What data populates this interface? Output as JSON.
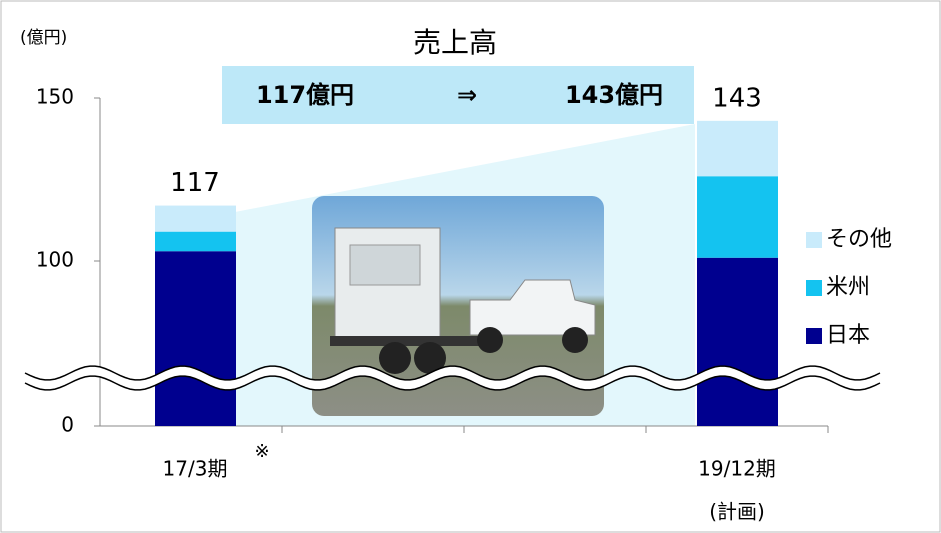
{
  "chart_data": {
    "type": "stacked-bar",
    "title": "売上高",
    "y_axis_label": "(億円)",
    "annotation": {
      "from": "117億円",
      "arrow": "⇒",
      "to": "143億円"
    },
    "categories": [
      "17/3期",
      null,
      null,
      "19/12期"
    ],
    "category_notes": [
      "※",
      null,
      null,
      "(計画)"
    ],
    "series": [
      {
        "name": "日本",
        "color": "#00008f",
        "values": [
          103,
          null,
          null,
          101
        ]
      },
      {
        "name": "米州",
        "color": "#14c3f0",
        "values": [
          6,
          null,
          null,
          25
        ]
      },
      {
        "name": "その他",
        "color": "#c9ebfb",
        "values": [
          8,
          null,
          null,
          17
        ]
      }
    ],
    "totals": [
      117,
      null,
      null,
      143
    ],
    "ylim": [
      0,
      150
    ],
    "yticks": [
      0,
      100,
      150
    ],
    "axis_break": true,
    "legend": "right"
  }
}
